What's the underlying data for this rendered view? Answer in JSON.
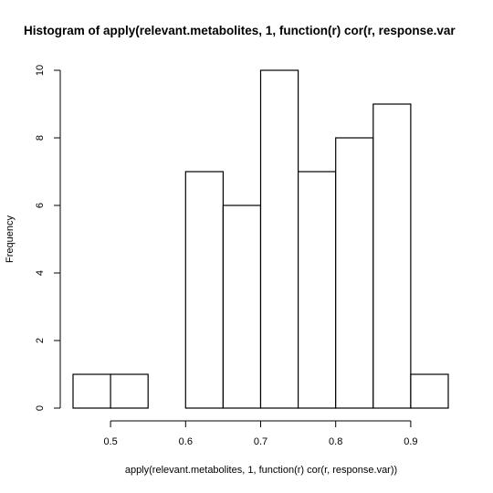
{
  "chart_data": {
    "type": "bar",
    "title": "Histogram of apply(relevant.metabolites, 1, function(r) cor(r, response.var",
    "xlabel": "apply(relevant.metabolites, 1, function(r) cor(r, response.var))",
    "ylabel": "Frequency",
    "bins": [
      [
        0.45,
        0.5
      ],
      [
        0.5,
        0.55
      ],
      [
        0.55,
        0.6
      ],
      [
        0.6,
        0.65
      ],
      [
        0.65,
        0.7
      ],
      [
        0.7,
        0.75
      ],
      [
        0.75,
        0.8
      ],
      [
        0.8,
        0.85
      ],
      [
        0.85,
        0.9
      ],
      [
        0.9,
        0.95
      ]
    ],
    "values": [
      1,
      1,
      0,
      7,
      6,
      10,
      7,
      8,
      9,
      1
    ],
    "xlim": [
      0.45,
      0.95
    ],
    "ylim": [
      0,
      10
    ],
    "xticks": [
      0.5,
      0.6,
      0.7,
      0.8,
      0.9
    ],
    "xtick_labels": [
      "0.5",
      "0.6",
      "0.7",
      "0.8",
      "0.9"
    ],
    "yticks": [
      0,
      2,
      4,
      6,
      8,
      10
    ],
    "ytick_labels": [
      "0",
      "2",
      "4",
      "6",
      "8",
      "10"
    ],
    "grid": false,
    "bar_fill": "#ffffff",
    "bar_stroke": "#000000"
  }
}
